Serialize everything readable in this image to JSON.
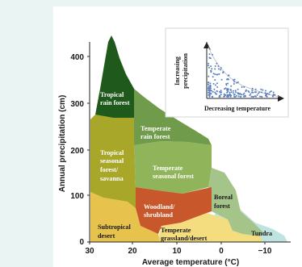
{
  "axes": {
    "ylabel": "Annual precipitation (cm)",
    "xlabel": "Average temperature (°C)",
    "y_ticks": [
      "0",
      "100",
      "200",
      "300",
      "400"
    ],
    "x_ticks": [
      "30",
      "20",
      "10",
      "0",
      "−10"
    ]
  },
  "biomes": {
    "tropical_rain_forest": [
      "Tropical",
      "rain forest"
    ],
    "temperate_rain_forest": [
      "Temperate",
      "rain forest"
    ],
    "tropical_seasonal": [
      "Tropical",
      "seasonal",
      "forest/",
      "savanna"
    ],
    "temperate_seasonal": [
      "Temperate",
      "seasonal forest"
    ],
    "woodland": [
      "Woodland/",
      "shrubland"
    ],
    "boreal": [
      "Boreal",
      "forest"
    ],
    "subtropical_desert": [
      "Subtropical",
      "desert"
    ],
    "temperate_grassland": [
      "Temperate",
      "grassland/desert"
    ],
    "tundra": [
      "Tundra"
    ]
  },
  "inset": {
    "ylabel_line1": "Increasing",
    "ylabel_line2": "precipitation",
    "xlabel": "Decreasing temperature"
  },
  "colors": {
    "tropical_rain_forest": "#1f5a1c",
    "temperate_rain_forest": "#6f9b4a",
    "tropical_seasonal": "#a8a72a",
    "temperate_seasonal": "#8fb45a",
    "woodland": "#c8582b",
    "boreal": "#a5c48a",
    "subtropical_desert": "#e7c24d",
    "temperate_grassland": "#f3dd7e",
    "tundra": "#bfe3e0"
  }
}
